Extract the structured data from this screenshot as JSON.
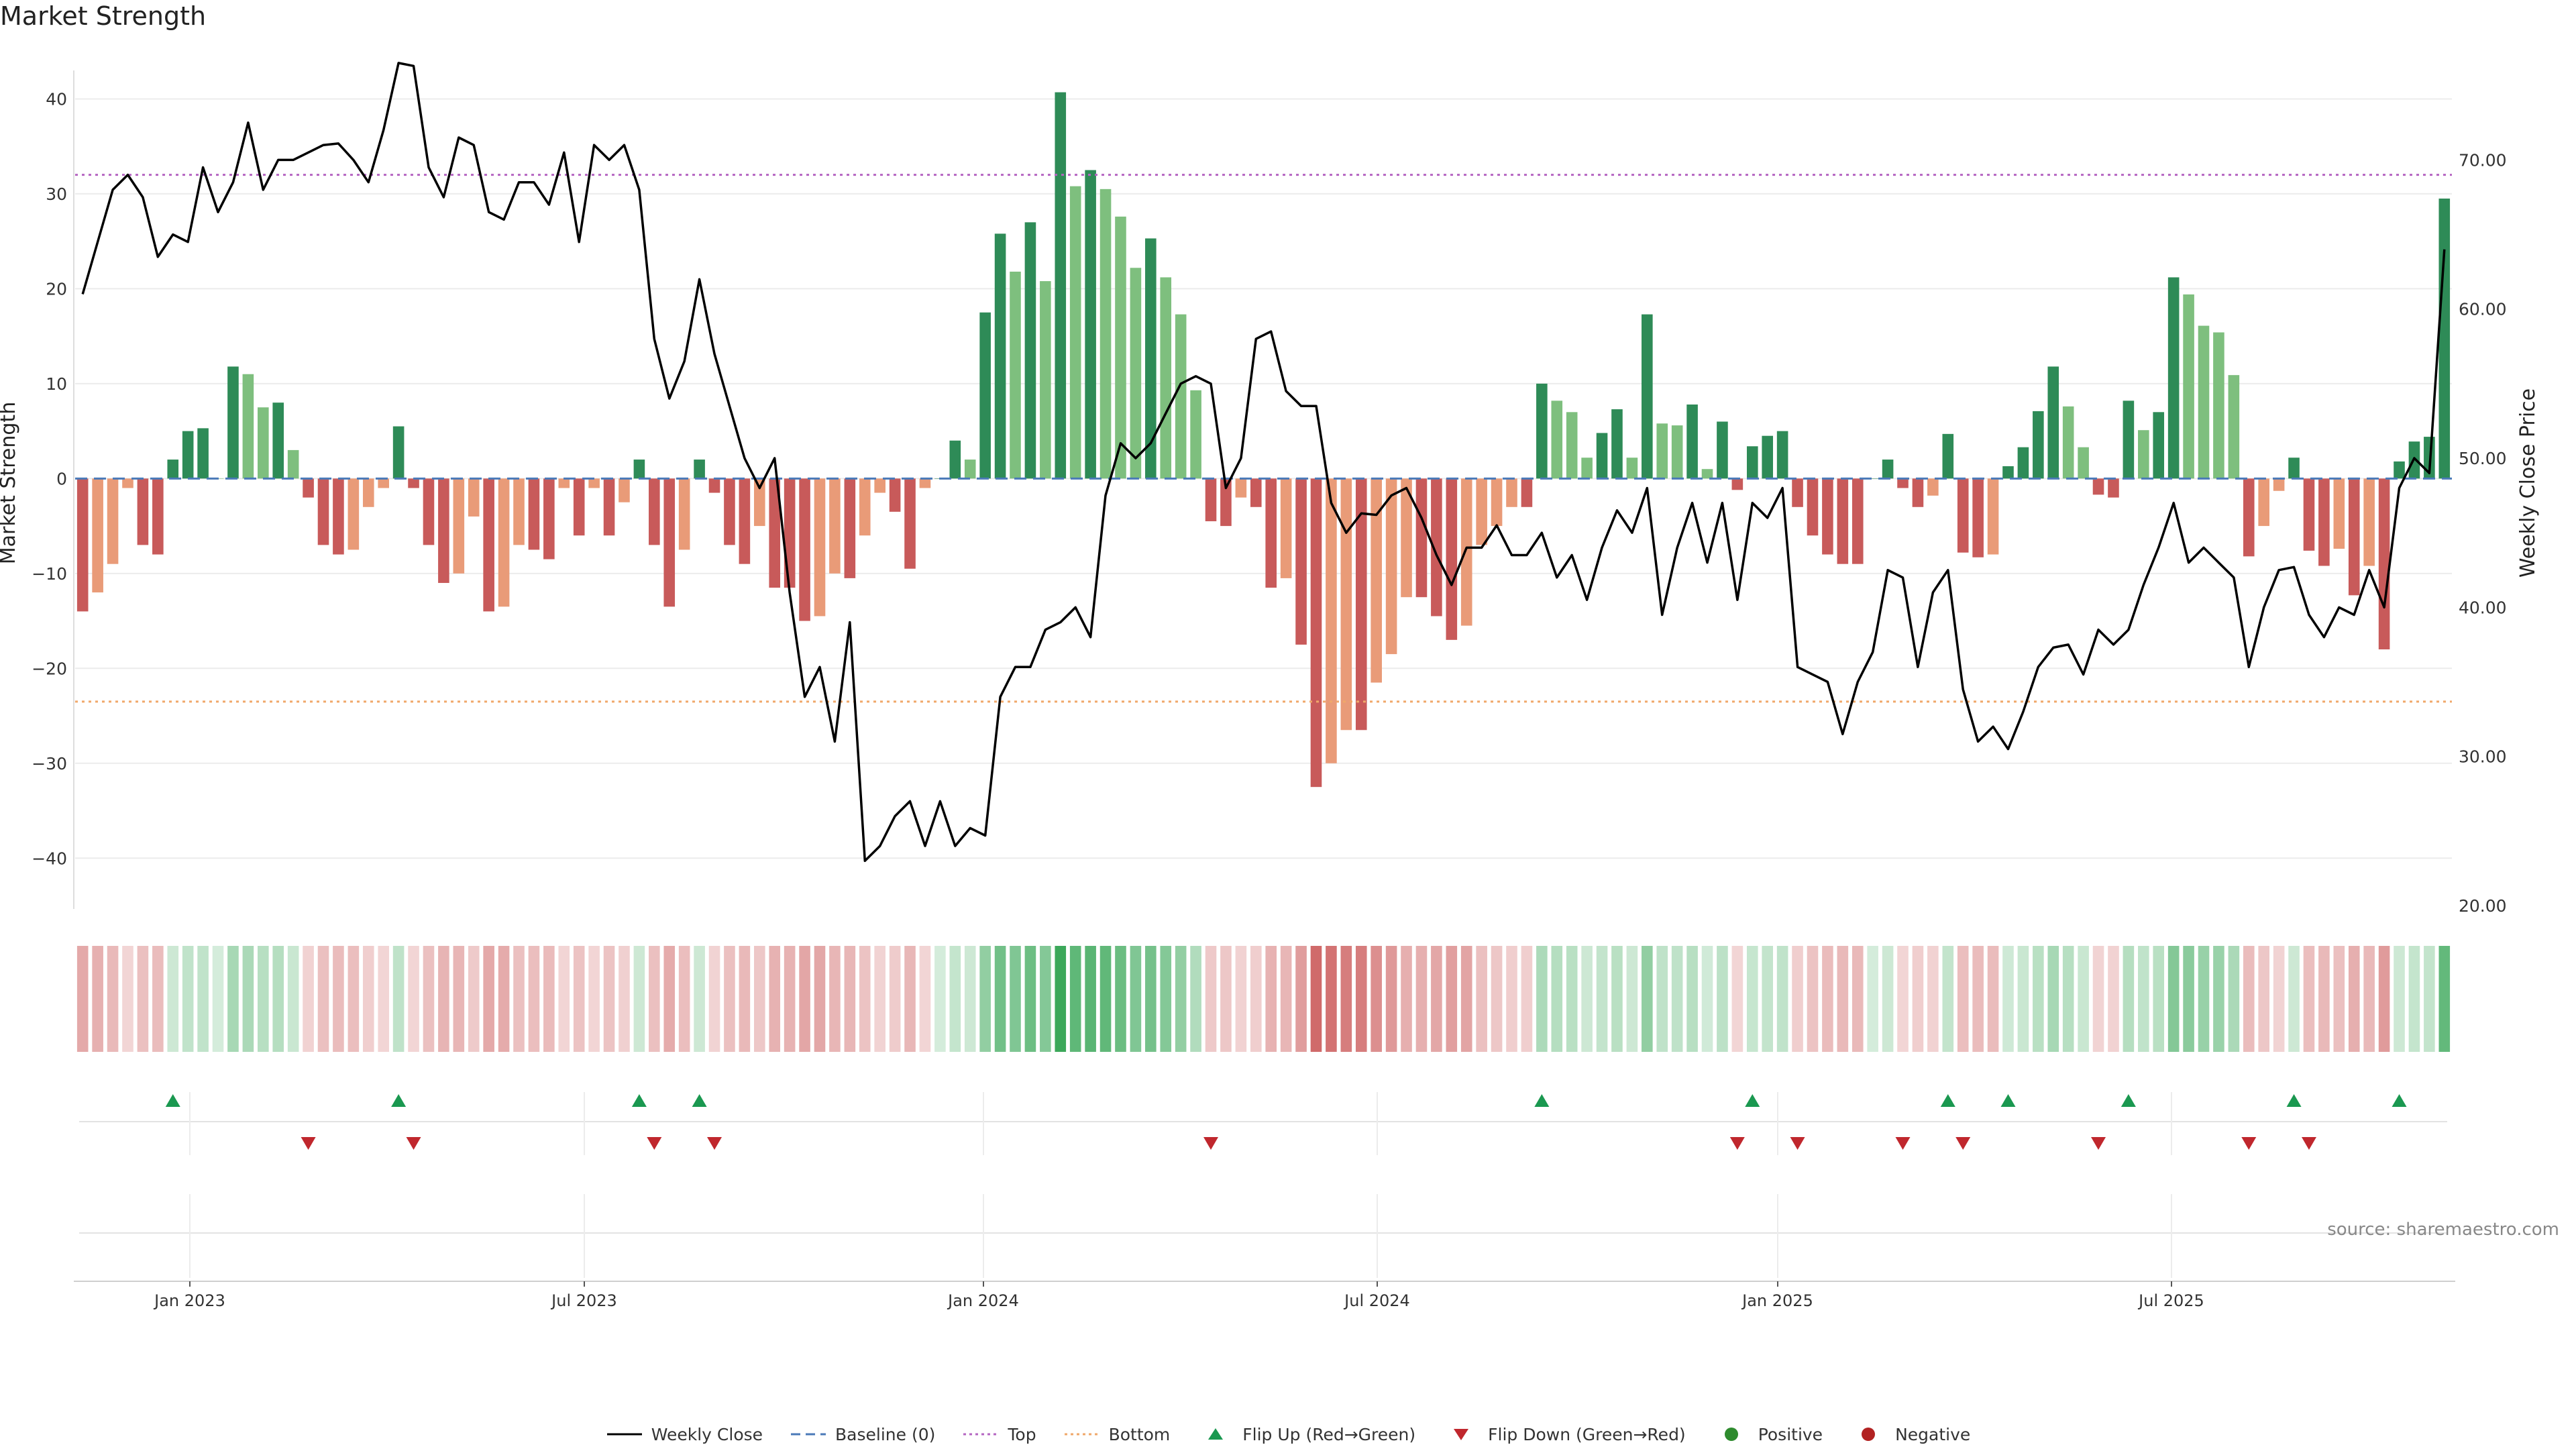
{
  "chart_data": {
    "type": "bar",
    "title": "Market Strength",
    "ylabel_left": "Market Strength",
    "ylabel_right": "Weekly Close Price",
    "source": "source: sharemaestro.com",
    "ylim_left": [
      -45,
      43
    ],
    "ylim_right": [
      20,
      76
    ],
    "yticks_left": [
      "40",
      "30",
      "20",
      "10",
      "0",
      "−10",
      "−20",
      "−30",
      "−40"
    ],
    "yticks_right": [
      "70.00",
      "60.00",
      "50.00",
      "40.00",
      "30.00",
      "20.00"
    ],
    "xticks": [
      "Jan 2023",
      "Jul 2023",
      "Jan 2024",
      "Jul 2024",
      "Jan 2025",
      "Jul 2025"
    ],
    "top_level": 32,
    "bottom_level": -23.5,
    "colors": {
      "strong_green": "#2e8b57",
      "light_green": "#7ebf7e",
      "strong_red": "#c85a5a",
      "light_red": "#e99b78",
      "close_line": "#000000",
      "top_line": "#b565c2",
      "bottom_line": "#f0a86a",
      "baseline": "#4a7ab8",
      "flip_up": "#1a9850",
      "flip_down": "#c0272d"
    },
    "strength": [
      -14,
      -12,
      -9,
      -1,
      -7,
      -8,
      2,
      5,
      5.3,
      0,
      11.8,
      11,
      7.5,
      8,
      3,
      -2,
      -7,
      -8,
      -7.5,
      -3,
      -1,
      5.5,
      -1,
      -7,
      -11,
      -10,
      -4,
      -14,
      -13.5,
      -7,
      -7.5,
      -8.5,
      -1,
      -6,
      -1,
      -6,
      -2.5,
      2,
      -7,
      -13.5,
      -7.5,
      2,
      -1.5,
      -7,
      -9,
      -5,
      -11.5,
      -11.5,
      -15,
      -14.5,
      -10,
      -10.5,
      -6,
      -1.5,
      -3.5,
      -9.5,
      -1,
      0,
      4,
      2,
      17.5,
      25.8,
      21.8,
      27,
      20.8,
      40.7,
      30.8,
      32.5,
      30.5,
      27.6,
      22.2,
      25.3,
      21.2,
      17.3,
      9.3,
      -4.5,
      -5,
      -2,
      -3,
      -11.5,
      -10.5,
      -17.5,
      -32.5,
      -30,
      -26.5,
      -26.5,
      -21.5,
      -18.5,
      -12.5,
      -12.5,
      -14.5,
      -17,
      -15.5,
      -7,
      -5,
      -3,
      -3,
      10,
      8.2,
      7,
      2.2,
      4.8,
      7.3,
      2.2,
      17.3,
      5.8,
      5.6,
      7.8,
      1,
      6,
      -1.2,
      3.4,
      4.5,
      5,
      -3,
      -6,
      -8,
      -9,
      -9,
      0,
      2,
      -1,
      -3,
      -1.8,
      4.7,
      -7.8,
      -8.3,
      -8,
      1.3,
      3.3,
      7.1,
      11.8,
      7.6,
      3.3,
      -1.7,
      -2,
      8.2,
      5.1,
      7,
      21.2,
      19.4,
      16.1,
      15.4,
      10.9,
      -8.2,
      -5,
      -1.3,
      2.2,
      -7.6,
      -9.2,
      -7.4,
      -12.3,
      -9.2,
      -18,
      1.8,
      3.9,
      4.4,
      29.5
    ],
    "weekly_close": [
      61,
      64.5,
      68,
      69,
      67.5,
      63.5,
      65,
      64.5,
      69.5,
      66.5,
      68.5,
      72.5,
      68,
      70,
      70,
      70.5,
      71,
      71.1,
      70,
      68.5,
      72,
      76.5,
      76.3,
      69.5,
      67.5,
      71.5,
      71,
      66.5,
      66,
      68.5,
      68.5,
      67,
      70.5,
      64.5,
      71,
      70,
      71,
      68,
      58,
      54,
      56.5,
      62,
      57,
      53.5,
      50,
      48,
      50,
      41,
      34,
      36,
      31,
      39,
      23,
      24,
      26,
      27,
      24,
      27,
      24,
      25.2,
      24.7,
      34,
      36,
      36,
      38.5,
      39,
      40,
      38,
      47.5,
      51,
      50,
      51,
      53,
      55,
      55.5,
      55,
      48,
      50,
      58,
      58.5,
      54.5,
      53.5,
      53.5,
      47,
      45,
      46.3,
      46.2,
      47.5,
      48,
      46,
      43.5,
      41.5,
      44,
      44,
      45.5,
      43.5,
      43.5,
      45,
      42,
      43.5,
      40.5,
      44,
      46.5,
      45,
      48,
      39.5,
      44,
      47,
      43,
      47,
      40.5,
      47,
      46,
      48,
      36,
      35.5,
      35,
      31.5,
      35,
      37,
      42.5,
      42,
      36,
      41,
      42.5,
      34.5,
      31,
      32,
      30.5,
      33,
      36,
      37.3,
      37.5,
      35.5,
      38.5,
      37.5,
      38.5,
      41.5,
      44,
      47,
      43,
      44,
      43,
      42,
      36,
      40,
      42.5,
      42.7,
      39.5,
      38,
      40,
      39.5,
      42.5,
      40,
      48,
      50,
      49,
      64
    ]
  },
  "legend": {
    "items": [
      {
        "label": "Weekly Close",
        "kind": "line",
        "color": "#000000"
      },
      {
        "label": "Baseline (0)",
        "kind": "dashed",
        "color": "#4a7ab8"
      },
      {
        "label": "Top",
        "kind": "dotted",
        "color": "#b565c2"
      },
      {
        "label": "Bottom",
        "kind": "dotted",
        "color": "#f0a86a"
      },
      {
        "label": "Flip Up (Red→Green)",
        "kind": "triangle-up",
        "color": "#1a9850"
      },
      {
        "label": "Flip Down (Green→Red)",
        "kind": "triangle-down",
        "color": "#c0272d"
      },
      {
        "label": "Positive",
        "kind": "dot",
        "color": "#2e8b2e"
      },
      {
        "label": "Negative",
        "kind": "dot",
        "color": "#b22222"
      }
    ]
  }
}
